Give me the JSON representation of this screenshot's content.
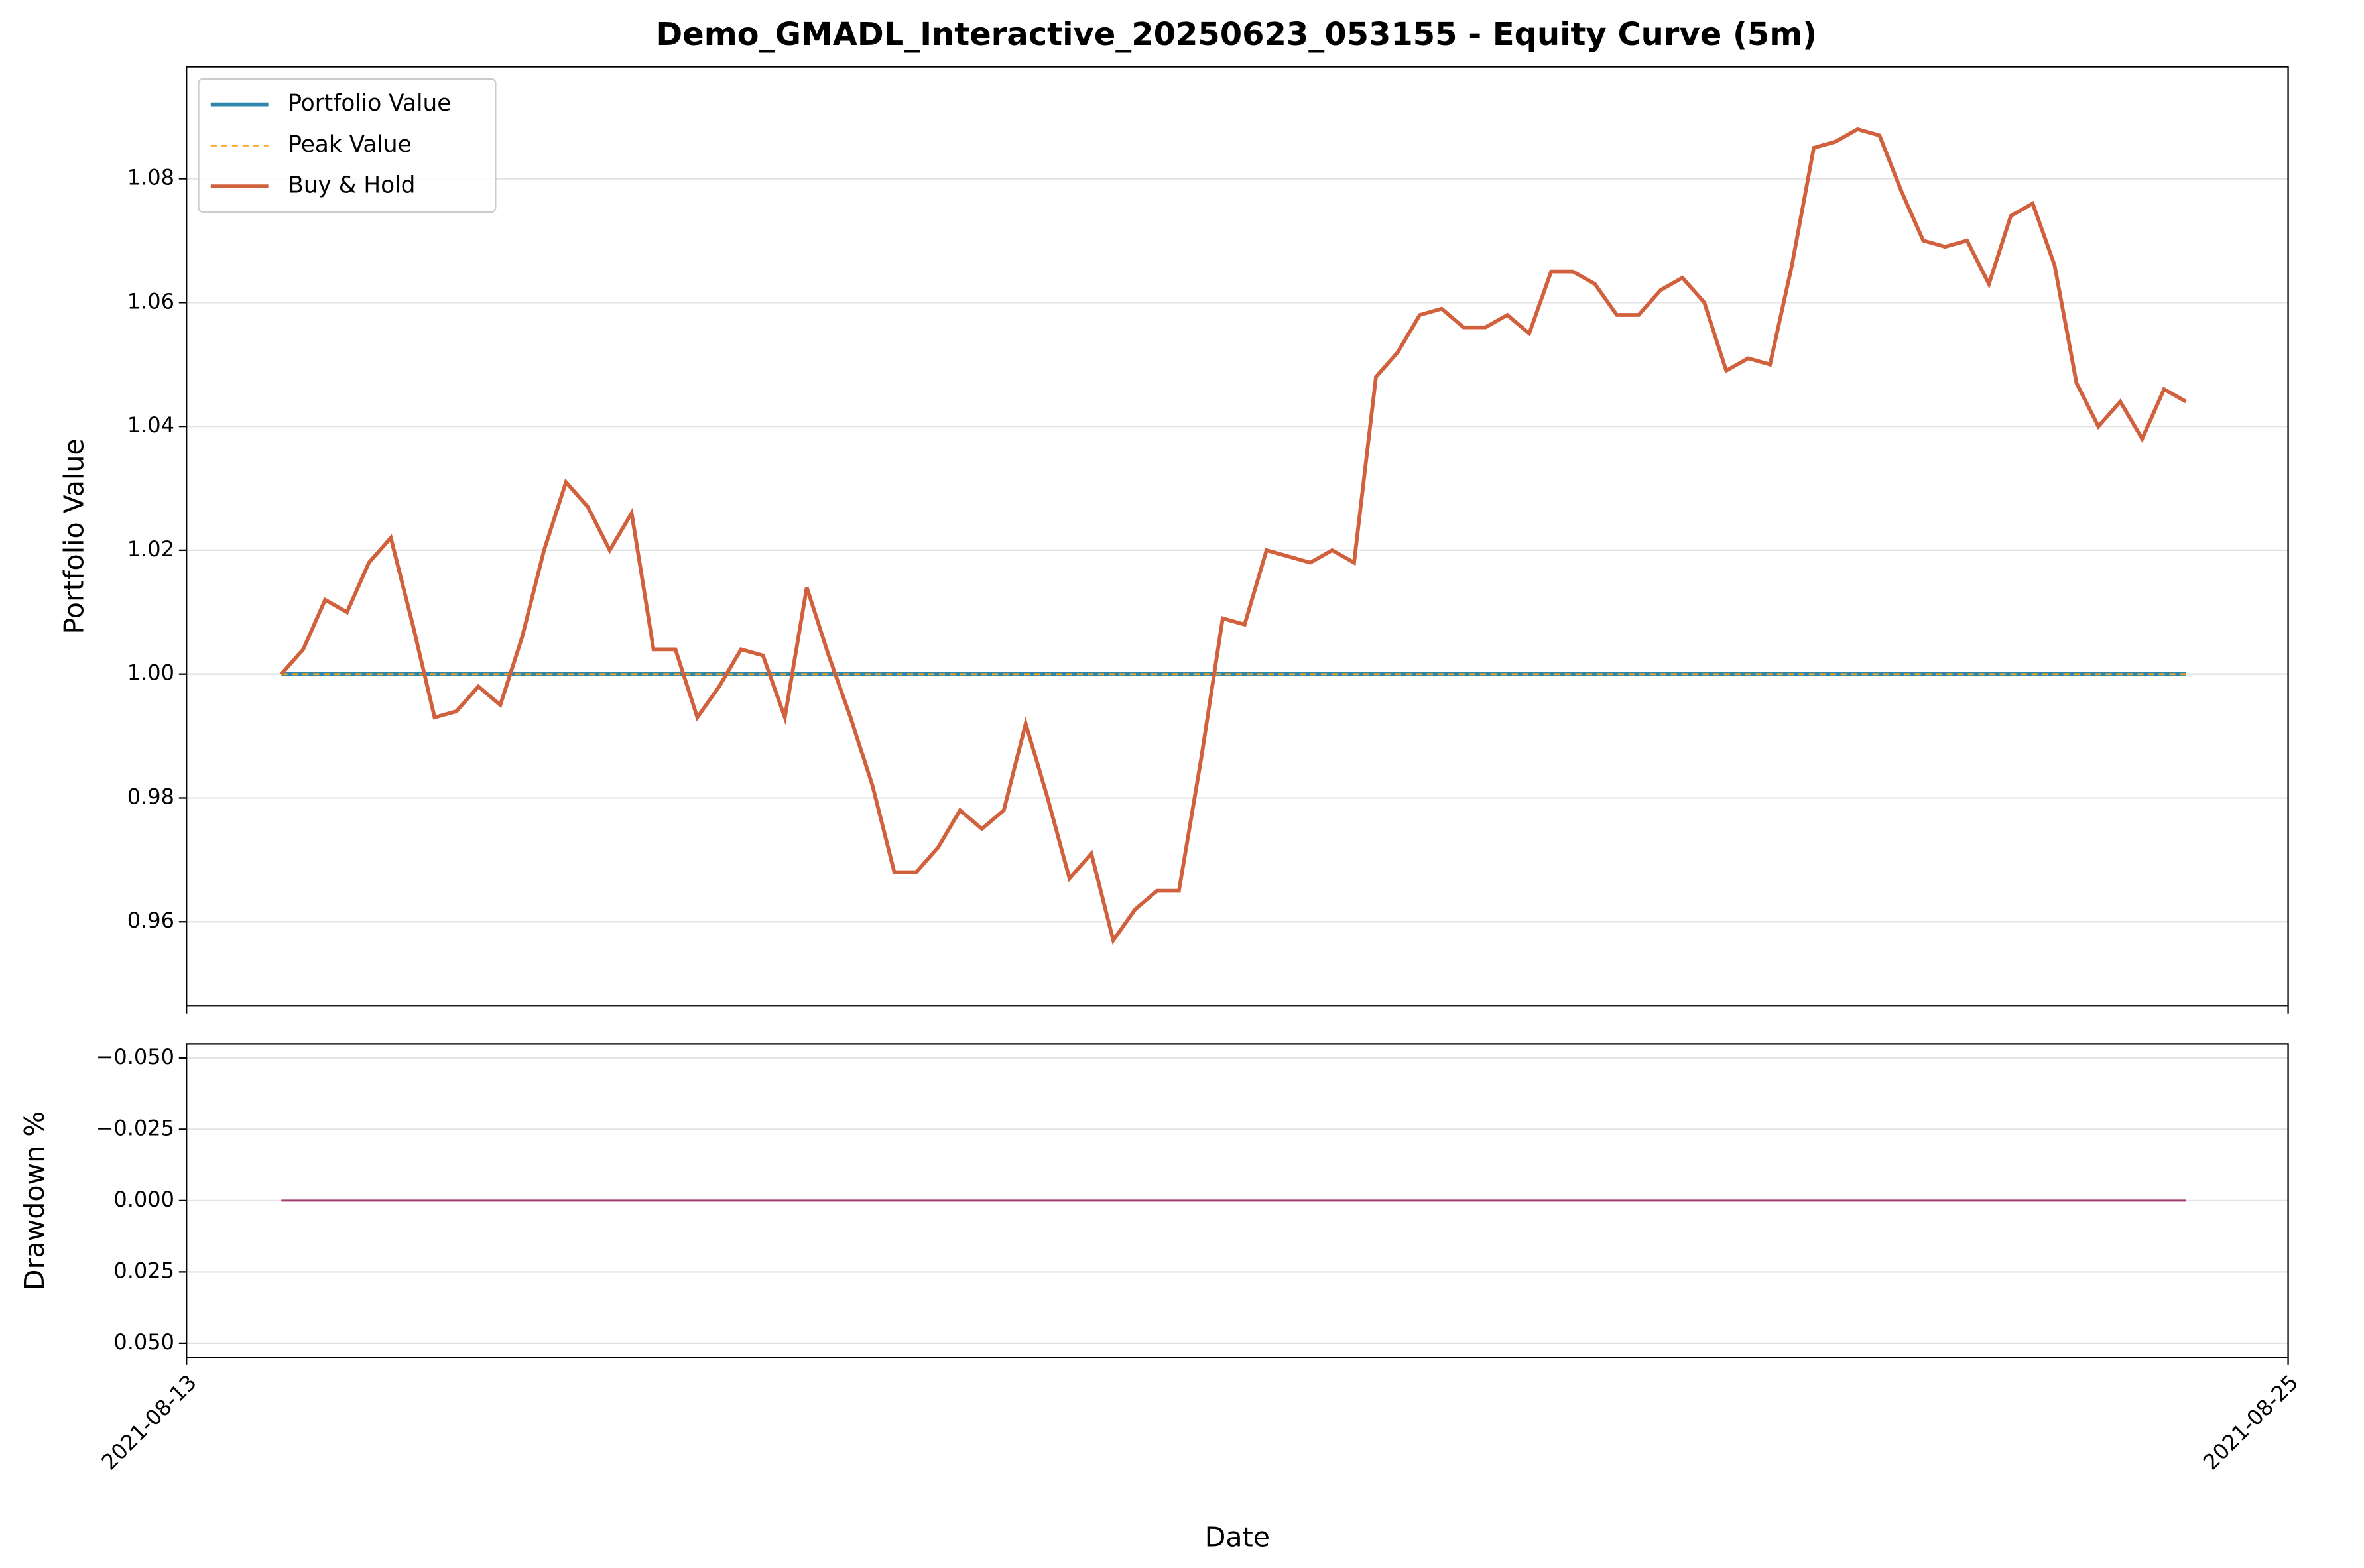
{
  "chart_data": [
    {
      "type": "line",
      "title": "Demo_GMADL_Interactive_20250623_053155 - Equity Curve (5m)",
      "ylabel": "Portfolio Value",
      "x": [
        "2021-08-13 13:00",
        "2021-08-13 16:00",
        "2021-08-13 19:00",
        "2021-08-13 22:00",
        "2021-08-14 01:00",
        "2021-08-14 04:00",
        "2021-08-14 07:00",
        "2021-08-14 10:00",
        "2021-08-14 13:00",
        "2021-08-14 16:00",
        "2021-08-14 19:00",
        "2021-08-14 22:00",
        "2021-08-15 01:00",
        "2021-08-15 04:00",
        "2021-08-15 07:00",
        "2021-08-15 10:00",
        "2021-08-15 13:00",
        "2021-08-15 16:00",
        "2021-08-15 19:00",
        "2021-08-15 22:00",
        "2021-08-16 01:00",
        "2021-08-16 04:00",
        "2021-08-16 07:00",
        "2021-08-16 10:00",
        "2021-08-16 13:00",
        "2021-08-16 16:00",
        "2021-08-16 19:00",
        "2021-08-16 22:00",
        "2021-08-17 01:00",
        "2021-08-17 04:00",
        "2021-08-17 07:00",
        "2021-08-17 10:00",
        "2021-08-17 13:00",
        "2021-08-17 16:00",
        "2021-08-17 19:00",
        "2021-08-17 22:00",
        "2021-08-18 01:00",
        "2021-08-18 04:00",
        "2021-08-18 07:00",
        "2021-08-18 10:00",
        "2021-08-18 13:00",
        "2021-08-18 16:00",
        "2021-08-18 19:00",
        "2021-08-18 22:00",
        "2021-08-19 01:00",
        "2021-08-19 04:00",
        "2021-08-19 07:00",
        "2021-08-19 10:00",
        "2021-08-19 13:00",
        "2021-08-19 16:00",
        "2021-08-19 19:00",
        "2021-08-19 22:00",
        "2021-08-20 01:00",
        "2021-08-20 04:00",
        "2021-08-20 07:00",
        "2021-08-20 10:00",
        "2021-08-20 13:00",
        "2021-08-20 16:00",
        "2021-08-20 19:00",
        "2021-08-20 22:00",
        "2021-08-21 01:00",
        "2021-08-21 04:00",
        "2021-08-21 07:00",
        "2021-08-21 10:00",
        "2021-08-21 13:00",
        "2021-08-21 16:00",
        "2021-08-21 19:00",
        "2021-08-21 22:00",
        "2021-08-22 01:00",
        "2021-08-22 04:00",
        "2021-08-22 07:00",
        "2021-08-22 10:00",
        "2021-08-22 13:00",
        "2021-08-22 16:00",
        "2021-08-22 19:00",
        "2021-08-22 22:00",
        "2021-08-23 01:00",
        "2021-08-23 04:00",
        "2021-08-23 07:00",
        "2021-08-23 10:00",
        "2021-08-23 13:00",
        "2021-08-23 16:00",
        "2021-08-23 19:00",
        "2021-08-23 22:00",
        "2021-08-24 01:00",
        "2021-08-24 04:00",
        "2021-08-24 07:00",
        "2021-08-24 10:00"
      ],
      "series": [
        {
          "name": "Portfolio Value",
          "color": "#2e86ab",
          "width": 2.5,
          "dash": false,
          "values": [
            1,
            1,
            1,
            1,
            1,
            1,
            1,
            1,
            1,
            1,
            1,
            1,
            1,
            1,
            1,
            1,
            1,
            1,
            1,
            1,
            1,
            1,
            1,
            1,
            1,
            1,
            1,
            1,
            1,
            1,
            1,
            1,
            1,
            1,
            1,
            1,
            1,
            1,
            1,
            1,
            1,
            1,
            1,
            1,
            1,
            1,
            1,
            1,
            1,
            1,
            1,
            1,
            1,
            1,
            1,
            1,
            1,
            1,
            1,
            1,
            1,
            1,
            1,
            1,
            1,
            1,
            1,
            1,
            1,
            1,
            1,
            1,
            1,
            1,
            1,
            1,
            1,
            1,
            1,
            1,
            1,
            1,
            1,
            1,
            1,
            1,
            1,
            1
          ]
        },
        {
          "name": "Peak Value",
          "color": "#f5a623",
          "width": 1.2,
          "dash": true,
          "values": [
            1,
            1,
            1,
            1,
            1,
            1,
            1,
            1,
            1,
            1,
            1,
            1,
            1,
            1,
            1,
            1,
            1,
            1,
            1,
            1,
            1,
            1,
            1,
            1,
            1,
            1,
            1,
            1,
            1,
            1,
            1,
            1,
            1,
            1,
            1,
            1,
            1,
            1,
            1,
            1,
            1,
            1,
            1,
            1,
            1,
            1,
            1,
            1,
            1,
            1,
            1,
            1,
            1,
            1,
            1,
            1,
            1,
            1,
            1,
            1,
            1,
            1,
            1,
            1,
            1,
            1,
            1,
            1,
            1,
            1,
            1,
            1,
            1,
            1,
            1,
            1,
            1,
            1,
            1,
            1,
            1,
            1,
            1,
            1,
            1,
            1,
            1,
            1
          ]
        },
        {
          "name": "Buy & Hold",
          "color": "#d1603d",
          "width": 2.5,
          "dash": false,
          "values": [
            1.0,
            1.004,
            1.012,
            1.01,
            1.018,
            1.022,
            1.008,
            0.993,
            0.994,
            0.998,
            0.995,
            1.006,
            1.02,
            1.031,
            1.027,
            1.02,
            1.026,
            1.004,
            1.004,
            0.993,
            0.998,
            1.004,
            1.003,
            0.993,
            1.014,
            1.003,
            0.993,
            0.982,
            0.968,
            0.968,
            0.972,
            0.978,
            0.975,
            0.978,
            0.992,
            0.98,
            0.967,
            0.971,
            0.957,
            0.962,
            0.965,
            0.965,
            0.986,
            1.009,
            1.008,
            1.02,
            1.019,
            1.018,
            1.02,
            1.018,
            1.048,
            1.052,
            1.058,
            1.059,
            1.056,
            1.056,
            1.058,
            1.055,
            1.065,
            1.065,
            1.063,
            1.058,
            1.058,
            1.062,
            1.064,
            1.06,
            1.049,
            1.051,
            1.05,
            1.066,
            1.085,
            1.086,
            1.088,
            1.087,
            1.078,
            1.07,
            1.069,
            1.07,
            1.063,
            1.074,
            1.076,
            1.066,
            1.047,
            1.04,
            1.044,
            1.038,
            1.046,
            1.044
          ]
        }
      ],
      "xlim": [
        "2021-08-13",
        "2021-08-25"
      ],
      "xticks": [
        "2021-08-13",
        "2021-08-25"
      ],
      "ylim": [
        0.9464,
        1.0981
      ],
      "yticks": [
        0.96,
        0.98,
        {
          "value": 1.0,
          "label": "1.00"
        },
        1.02,
        1.04,
        1.06,
        1.08
      ],
      "grid": true,
      "legend": "upper-left"
    },
    {
      "type": "line",
      "ylabel": "Drawdown %",
      "xlabel": "Date",
      "x": [
        "2021-08-13 13:00",
        "2021-08-13 16:00",
        "2021-08-13 19:00",
        "2021-08-13 22:00",
        "2021-08-14 01:00",
        "2021-08-14 04:00",
        "2021-08-14 07:00",
        "2021-08-14 10:00",
        "2021-08-14 13:00",
        "2021-08-14 16:00",
        "2021-08-14 19:00",
        "2021-08-14 22:00",
        "2021-08-15 01:00",
        "2021-08-15 04:00",
        "2021-08-15 07:00",
        "2021-08-15 10:00",
        "2021-08-15 13:00",
        "2021-08-15 16:00",
        "2021-08-15 19:00",
        "2021-08-15 22:00",
        "2021-08-16 01:00",
        "2021-08-16 04:00",
        "2021-08-16 07:00",
        "2021-08-16 10:00",
        "2021-08-16 13:00",
        "2021-08-16 16:00",
        "2021-08-16 19:00",
        "2021-08-16 22:00",
        "2021-08-17 01:00",
        "2021-08-17 04:00",
        "2021-08-17 07:00",
        "2021-08-17 10:00",
        "2021-08-17 13:00",
        "2021-08-17 16:00",
        "2021-08-17 19:00",
        "2021-08-17 22:00",
        "2021-08-18 01:00",
        "2021-08-18 04:00",
        "2021-08-18 07:00",
        "2021-08-18 10:00",
        "2021-08-18 13:00",
        "2021-08-18 16:00",
        "2021-08-18 19:00",
        "2021-08-18 22:00",
        "2021-08-19 01:00",
        "2021-08-19 04:00",
        "2021-08-19 07:00",
        "2021-08-19 10:00",
        "2021-08-19 13:00",
        "2021-08-19 16:00",
        "2021-08-19 19:00",
        "2021-08-19 22:00",
        "2021-08-20 01:00",
        "2021-08-20 04:00",
        "2021-08-20 07:00",
        "2021-08-20 10:00",
        "2021-08-20 13:00",
        "2021-08-20 16:00",
        "2021-08-20 19:00",
        "2021-08-20 22:00",
        "2021-08-21 01:00",
        "2021-08-21 04:00",
        "2021-08-21 07:00",
        "2021-08-21 10:00",
        "2021-08-21 13:00",
        "2021-08-21 16:00",
        "2021-08-21 19:00",
        "2021-08-21 22:00",
        "2021-08-22 01:00",
        "2021-08-22 04:00",
        "2021-08-22 07:00",
        "2021-08-22 10:00",
        "2021-08-22 13:00",
        "2021-08-22 16:00",
        "2021-08-22 19:00",
        "2021-08-22 22:00",
        "2021-08-23 01:00",
        "2021-08-23 04:00",
        "2021-08-23 07:00",
        "2021-08-23 10:00",
        "2021-08-23 13:00",
        "2021-08-23 16:00",
        "2021-08-23 19:00",
        "2021-08-23 22:00",
        "2021-08-24 01:00",
        "2021-08-24 04:00",
        "2021-08-24 07:00",
        "2021-08-24 10:00"
      ],
      "values": [
        0,
        0,
        0,
        0,
        0,
        0,
        0,
        0,
        0,
        0,
        0,
        0,
        0,
        0,
        0,
        0,
        0,
        0,
        0,
        0,
        0,
        0,
        0,
        0,
        0,
        0,
        0,
        0,
        0,
        0,
        0,
        0,
        0,
        0,
        0,
        0,
        0,
        0,
        0,
        0,
        0,
        0,
        0,
        0,
        0,
        0,
        0,
        0,
        0,
        0,
        0,
        0,
        0,
        0,
        0,
        0,
        0,
        0,
        0,
        0,
        0,
        0,
        0,
        0,
        0,
        0,
        0,
        0,
        0,
        0,
        0,
        0,
        0,
        0,
        0,
        0,
        0,
        0,
        0,
        0,
        0,
        0,
        0,
        0,
        0,
        0,
        0,
        0
      ],
      "color": "#a23b72",
      "xlim": [
        "2021-08-13",
        "2021-08-25"
      ],
      "xticks": [
        "2021-08-13",
        "2021-08-25"
      ],
      "ylim": [
        -0.055,
        0.055
      ],
      "inverted": true,
      "yticks": [
        {
          "value": -0.05,
          "label": "−0.050"
        },
        {
          "value": -0.025,
          "label": "−0.025"
        },
        {
          "value": 0,
          "label": "0.000"
        },
        {
          "value": 0.025,
          "label": "0.025"
        },
        {
          "value": 0.05,
          "label": "0.050"
        }
      ],
      "grid": true
    }
  ]
}
